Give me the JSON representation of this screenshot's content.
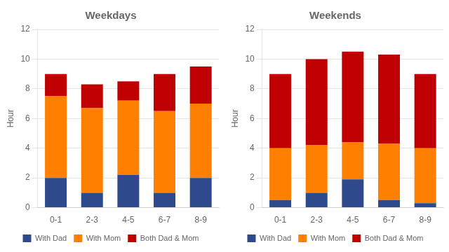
{
  "chart_data": [
    {
      "type": "bar",
      "title": "Weekdays",
      "categories": [
        "0-1",
        "2-3",
        "4-5",
        "6-7",
        "8-9"
      ],
      "series": [
        {
          "name": "With Dad",
          "color": "#2E4A8C",
          "values": [
            2.0,
            1.0,
            2.2,
            1.0,
            2.0
          ]
        },
        {
          "name": "With Mom",
          "color": "#FF7F00",
          "values": [
            5.5,
            5.7,
            5.0,
            5.5,
            5.0
          ]
        },
        {
          "name": "Both Dad & Mom",
          "color": "#C00000",
          "values": [
            1.5,
            1.6,
            1.3,
            2.5,
            2.5
          ]
        }
      ],
      "ylabel": "Hour",
      "ylim": [
        0,
        12
      ],
      "yticks": [
        0,
        2,
        4,
        6,
        8,
        10,
        12
      ],
      "stacked": true,
      "grid": true,
      "legend": "bottom"
    },
    {
      "type": "bar",
      "title": "Weekends",
      "categories": [
        "0-1",
        "2-3",
        "4-5",
        "6-7",
        "8-9"
      ],
      "series": [
        {
          "name": "With Dad",
          "color": "#2E4A8C",
          "values": [
            0.5,
            1.0,
            1.9,
            0.5,
            0.3
          ]
        },
        {
          "name": "With Mom",
          "color": "#FF7F00",
          "values": [
            3.5,
            3.2,
            2.5,
            3.8,
            3.7
          ]
        },
        {
          "name": "Both Dad & Mom",
          "color": "#C00000",
          "values": [
            5.0,
            5.8,
            6.1,
            6.0,
            5.0
          ]
        }
      ],
      "ylabel": "Hour",
      "ylim": [
        0,
        12
      ],
      "yticks": [
        0,
        2,
        4,
        6,
        8,
        10,
        12
      ],
      "stacked": true,
      "grid": true,
      "legend": "bottom"
    }
  ]
}
